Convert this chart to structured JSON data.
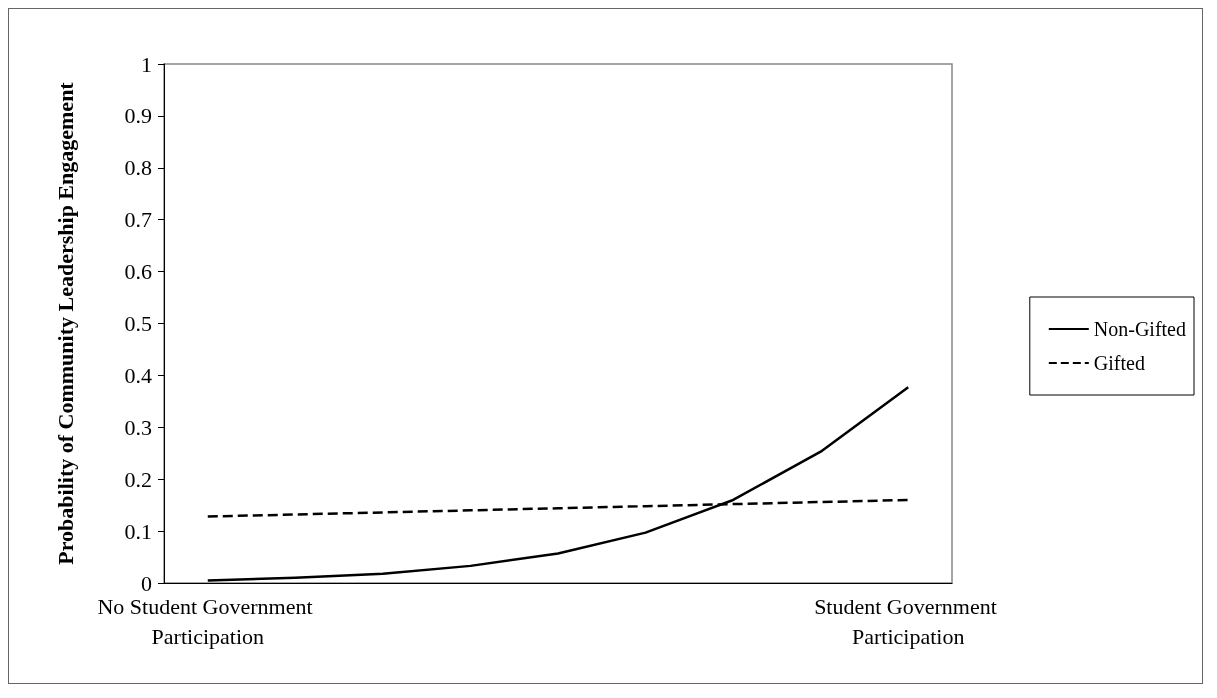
{
  "chart_data": {
    "type": "line",
    "ylabel": "Probability of Community Leadership Engagement",
    "categories": [
      "No Student Government Participation",
      null,
      null,
      null,
      null,
      null,
      null,
      null,
      "Student Government Participation"
    ],
    "series": [
      {
        "name": "Non-Gifted",
        "color": "#000000",
        "line_style": "solid",
        "values": [
          0.005,
          0.01,
          0.018,
          0.033,
          0.057,
          0.097,
          0.16,
          0.253,
          0.377
        ]
      },
      {
        "name": "Gifted",
        "color": "#000000",
        "line_style": "dashed",
        "values": [
          0.128,
          0.132,
          0.136,
          0.14,
          0.144,
          0.148,
          0.152,
          0.156,
          0.16
        ]
      }
    ],
    "ylim": [
      0,
      1
    ],
    "yticks": [
      0,
      0.1,
      0.2,
      0.3,
      0.4,
      0.5,
      0.6,
      0.7,
      0.8,
      0.9,
      1
    ],
    "grid": false,
    "legend": "right",
    "marker": "none"
  }
}
